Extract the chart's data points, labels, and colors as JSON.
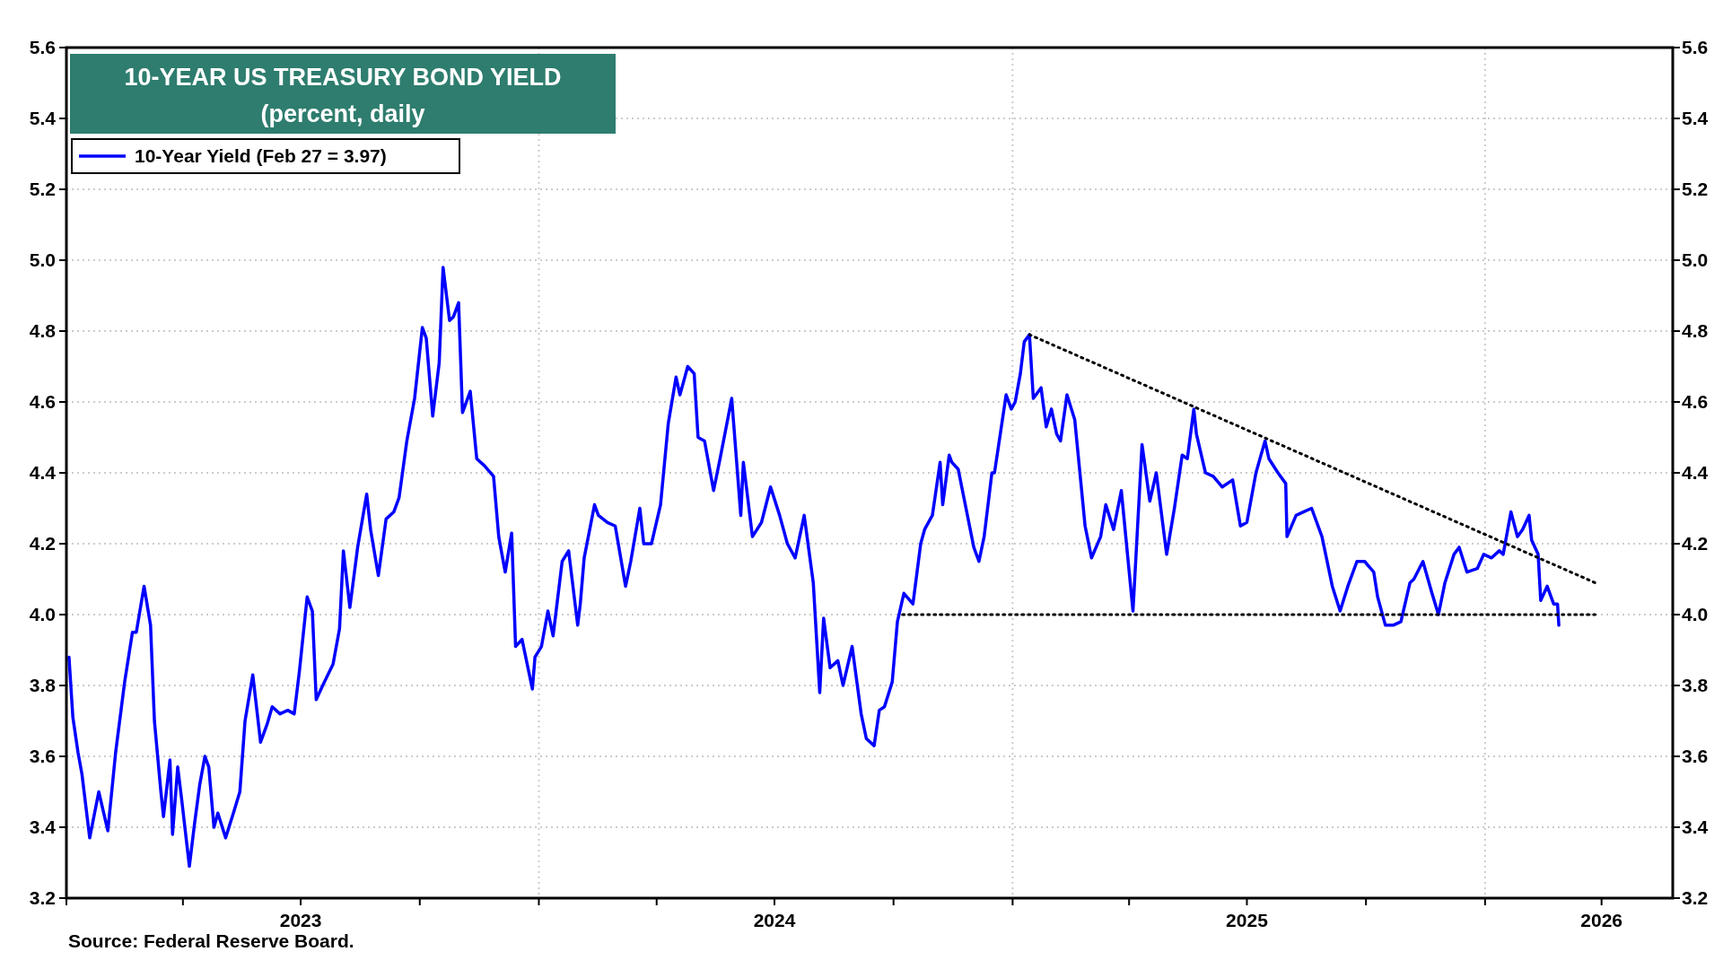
{
  "chart_data": {
    "type": "line",
    "title": "10-YEAR US TREASURY BOND YIELD",
    "subtitle": "(percent, daily",
    "annotations": [
      "Source: Federal Reserve Board."
    ],
    "xlim": [
      "2023-01-01",
      "2026-05-26"
    ],
    "xticks": [
      {
        "value": "2023-01-01",
        "label": null
      },
      {
        "value": "2023-04-01",
        "label": null
      },
      {
        "value": "2023-07-01",
        "label": "2023"
      },
      {
        "value": "2023-10-01",
        "label": null
      },
      {
        "value": "2024-01-01",
        "label": null
      },
      {
        "value": "2024-04-01",
        "label": null
      },
      {
        "value": "2024-07-01",
        "label": "2024"
      },
      {
        "value": "2024-10-01",
        "label": null
      },
      {
        "value": "2025-01-01",
        "label": null
      },
      {
        "value": "2025-04-01",
        "label": null
      },
      {
        "value": "2025-07-01",
        "label": "2025"
      },
      {
        "value": "2025-10-01",
        "label": null
      },
      {
        "value": "2026-01-01",
        "label": null
      },
      {
        "value": "2026-04-01",
        "label": "2026"
      }
    ],
    "ylim": [
      3.2,
      5.6
    ],
    "yticks": [
      3.2,
      3.4,
      3.6,
      3.8,
      {
        "value": 4,
        "label": "4.0"
      },
      4.2,
      4.4,
      4.6,
      4.8,
      {
        "value": 5,
        "label": "5.0"
      },
      5.2,
      5.4,
      5.6
    ],
    "y2lim": [
      3.2,
      5.6
    ],
    "y2ticks": [
      3.2,
      3.4,
      3.6,
      3.8,
      {
        "value": 4,
        "label": "4.0"
      },
      4.2,
      4.4,
      4.6,
      4.8,
      {
        "value": 5,
        "label": "5.0"
      },
      5.2,
      5.4,
      5.6
    ],
    "grid": true,
    "legend": "top left",
    "series": [
      {
        "name": "10-Year Yield (Feb 27 = 3.97)",
        "color": "#0000ff",
        "line_style": "solid",
        "x": [
          "2023-01-03",
          "2023-01-06",
          "2023-01-10",
          "2023-01-13",
          "2023-01-19",
          "2023-01-26",
          "2023-02-02",
          "2023-02-08",
          "2023-02-15",
          "2023-02-21",
          "2023-02-24",
          "2023-03-02",
          "2023-03-07",
          "2023-03-10",
          "2023-03-15",
          "2023-03-17",
          "2023-03-22",
          "2023-03-24",
          "2023-03-28",
          "2023-03-31",
          "2023-04-06",
          "2023-04-10",
          "2023-04-14",
          "2023-04-18",
          "2023-04-21",
          "2023-04-25",
          "2023-04-28",
          "2023-05-04",
          "2023-05-10",
          "2023-05-15",
          "2023-05-19",
          "2023-05-25",
          "2023-05-31",
          "2023-06-05",
          "2023-06-09",
          "2023-06-15",
          "2023-06-21",
          "2023-06-26",
          "2023-06-30",
          "2023-07-06",
          "2023-07-10",
          "2023-07-13",
          "2023-07-18",
          "2023-07-26",
          "2023-07-31",
          "2023-08-03",
          "2023-08-08",
          "2023-08-14",
          "2023-08-21",
          "2023-08-24",
          "2023-08-30",
          "2023-09-05",
          "2023-09-11",
          "2023-09-15",
          "2023-09-21",
          "2023-09-27",
          "2023-10-03",
          "2023-10-06",
          "2023-10-11",
          "2023-10-16",
          "2023-10-19",
          "2023-10-24",
          "2023-10-27",
          "2023-10-31",
          "2023-11-03",
          "2023-11-09",
          "2023-11-14",
          "2023-11-20",
          "2023-11-27",
          "2023-12-01",
          "2023-12-06",
          "2023-12-11",
          "2023-12-14",
          "2023-12-19",
          "2023-12-27",
          "2023-12-29",
          "2024-01-03",
          "2024-01-08",
          "2024-01-12",
          "2024-01-19",
          "2024-01-24",
          "2024-01-31",
          "2024-02-02",
          "2024-02-05",
          "2024-02-13",
          "2024-02-16",
          "2024-02-23",
          "2024-02-29",
          "2024-03-08",
          "2024-03-12",
          "2024-03-19",
          "2024-03-22",
          "2024-03-28",
          "2024-04-04",
          "2024-04-10",
          "2024-04-16",
          "2024-04-19",
          "2024-04-25",
          "2024-04-30",
          "2024-05-03",
          "2024-05-08",
          "2024-05-15",
          "2024-05-20",
          "2024-05-29",
          "2024-06-05",
          "2024-06-07",
          "2024-06-14",
          "2024-06-21",
          "2024-06-28",
          "2024-07-05",
          "2024-07-11",
          "2024-07-17",
          "2024-07-24",
          "2024-07-31",
          "2024-08-05",
          "2024-08-08",
          "2024-08-13",
          "2024-08-19",
          "2024-08-23",
          "2024-08-30",
          "2024-09-06",
          "2024-09-10",
          "2024-09-16",
          "2024-09-20",
          "2024-09-24",
          "2024-09-30",
          "2024-10-04",
          "2024-10-09",
          "2024-10-16",
          "2024-10-22",
          "2024-10-25",
          "2024-10-31",
          "2024-11-06",
          "2024-11-08",
          "2024-11-13",
          "2024-11-15",
          "2024-11-20",
          "2024-11-26",
          "2024-12-02",
          "2024-12-06",
          "2024-12-10",
          "2024-12-16",
          "2024-12-18",
          "2024-12-27",
          "2024-12-31",
          "2025-01-03",
          "2025-01-07",
          "2025-01-10",
          "2025-01-14",
          "2025-01-17",
          "2025-01-23",
          "2025-01-27",
          "2025-01-31",
          "2025-02-04",
          "2025-02-07",
          "2025-02-12",
          "2025-02-18",
          "2025-02-26",
          "2025-03-03",
          "2025-03-10",
          "2025-03-14",
          "2025-03-20",
          "2025-03-26",
          "2025-04-04",
          "2025-04-11",
          "2025-04-17",
          "2025-04-22",
          "2025-04-30",
          "2025-05-06",
          "2025-05-12",
          "2025-05-16",
          "2025-05-21",
          "2025-05-23",
          "2025-05-30",
          "2025-06-05",
          "2025-06-12",
          "2025-06-20",
          "2025-06-26",
          "2025-07-01",
          "2025-07-08",
          "2025-07-15",
          "2025-07-18",
          "2025-07-25",
          "2025-07-31",
          "2025-08-01",
          "2025-08-08",
          "2025-08-14",
          "2025-08-20",
          "2025-08-28",
          "2025-09-05",
          "2025-09-11",
          "2025-09-17",
          "2025-09-24",
          "2025-09-30",
          "2025-10-07",
          "2025-10-10",
          "2025-10-16",
          "2025-10-22",
          "2025-10-28",
          "2025-11-04",
          "2025-11-07",
          "2025-11-14",
          "2025-11-21",
          "2025-11-26",
          "2025-12-01",
          "2025-12-08",
          "2025-12-12",
          "2025-12-18",
          "2025-12-26",
          "2025-12-31",
          "2026-01-06",
          "2026-01-12",
          "2026-01-15",
          "2026-01-21",
          "2026-01-26",
          "2026-01-30",
          "2026-02-04",
          "2026-02-06",
          "2026-02-11",
          "2026-02-13",
          "2026-02-18",
          "2026-02-23",
          "2026-02-26",
          "2026-02-27"
        ],
        "values": [
          3.88,
          3.71,
          3.61,
          3.55,
          3.37,
          3.5,
          3.39,
          3.61,
          3.81,
          3.95,
          3.95,
          4.08,
          3.97,
          3.7,
          3.5,
          3.43,
          3.59,
          3.38,
          3.57,
          3.48,
          3.29,
          3.41,
          3.52,
          3.6,
          3.57,
          3.4,
          3.44,
          3.37,
          3.44,
          3.5,
          3.7,
          3.83,
          3.64,
          3.69,
          3.74,
          3.72,
          3.73,
          3.72,
          3.84,
          4.05,
          4.01,
          3.76,
          3.8,
          3.86,
          3.96,
          4.18,
          4.02,
          4.19,
          4.34,
          4.24,
          4.11,
          4.27,
          4.29,
          4.33,
          4.49,
          4.61,
          4.81,
          4.78,
          4.56,
          4.71,
          4.98,
          4.83,
          4.84,
          4.88,
          4.57,
          4.63,
          4.44,
          4.42,
          4.39,
          4.22,
          4.12,
          4.23,
          3.91,
          3.93,
          3.79,
          3.88,
          3.91,
          4.01,
          3.94,
          4.15,
          4.18,
          3.97,
          4.03,
          4.16,
          4.31,
          4.28,
          4.26,
          4.25,
          4.08,
          4.15,
          4.3,
          4.2,
          4.2,
          4.31,
          4.54,
          4.67,
          4.62,
          4.7,
          4.68,
          4.5,
          4.49,
          4.35,
          4.44,
          4.61,
          4.28,
          4.43,
          4.22,
          4.26,
          4.36,
          4.28,
          4.2,
          4.16,
          4.28,
          4.09,
          3.78,
          3.99,
          3.85,
          3.87,
          3.8,
          3.91,
          3.72,
          3.65,
          3.63,
          3.73,
          3.74,
          3.81,
          3.98,
          4.06,
          4.03,
          4.2,
          4.24,
          4.28,
          4.43,
          4.31,
          4.45,
          4.43,
          4.41,
          4.3,
          4.19,
          4.15,
          4.22,
          4.4,
          4.4,
          4.62,
          4.58,
          4.6,
          4.68,
          4.77,
          4.79,
          4.61,
          4.64,
          4.53,
          4.58,
          4.51,
          4.49,
          4.62,
          4.55,
          4.25,
          4.16,
          4.22,
          4.31,
          4.24,
          4.35,
          4.01,
          4.48,
          4.32,
          4.4,
          4.17,
          4.3,
          4.45,
          4.44,
          4.58,
          4.51,
          4.4,
          4.39,
          4.36,
          4.38,
          4.25,
          4.26,
          4.4,
          4.49,
          4.44,
          4.4,
          4.37,
          4.22,
          4.28,
          4.29,
          4.3,
          4.22,
          4.08,
          4.01,
          4.08,
          4.15,
          4.15,
          4.12,
          4.05,
          3.97,
          3.97,
          3.98,
          4.09,
          4.1,
          4.15,
          4.06,
          4.0,
          4.09,
          4.17,
          4.19,
          4.12,
          4.13,
          4.17,
          4.16,
          4.18,
          4.17,
          4.29,
          4.22,
          4.24,
          4.28,
          4.21,
          4.17,
          4.04,
          4.08,
          4.03,
          4.03,
          3.97
        ]
      },
      {
        "color": "#000000",
        "line_style": "dotted",
        "x": [
          "2025-01-14",
          "2026-03-27"
        ],
        "values": [
          4.79,
          4.09
        ]
      },
      {
        "color": "#000000",
        "line_style": "dotted",
        "x": [
          "2024-10-08",
          "2026-03-27"
        ],
        "values": [
          4.0,
          4.0
        ]
      }
    ]
  }
}
